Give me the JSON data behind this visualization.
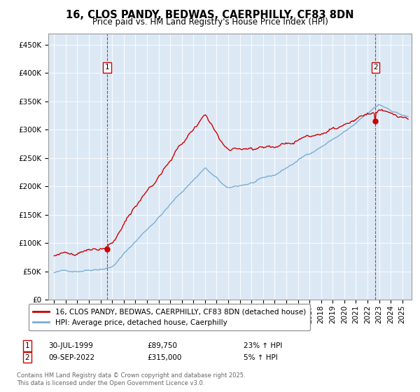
{
  "title": "16, CLOS PANDY, BEDWAS, CAERPHILLY, CF83 8DN",
  "subtitle": "Price paid vs. HM Land Registry's House Price Index (HPI)",
  "sale1_date": "30-JUL-1999",
  "sale1_price": 89750,
  "sale1_hpi": "23% ↑ HPI",
  "sale1_label": "1",
  "sale2_date": "09-SEP-2022",
  "sale2_price": 315000,
  "sale2_hpi": "5% ↑ HPI",
  "sale2_label": "2",
  "legend1": "16, CLOS PANDY, BEDWAS, CAERPHILLY, CF83 8DN (detached house)",
  "legend2": "HPI: Average price, detached house, Caerphilly",
  "footer": "Contains HM Land Registry data © Crown copyright and database right 2025.\nThis data is licensed under the Open Government Licence v3.0.",
  "line1_color": "#cc0000",
  "line2_color": "#7aadd4",
  "background_color": "#dce9f5",
  "plot_bg": "#dce9f5",
  "ylim": [
    0,
    470000
  ],
  "yticks": [
    0,
    50000,
    100000,
    150000,
    200000,
    250000,
    300000,
    350000,
    400000,
    450000
  ],
  "sale1_x": 1999.58,
  "sale2_x": 2022.69
}
